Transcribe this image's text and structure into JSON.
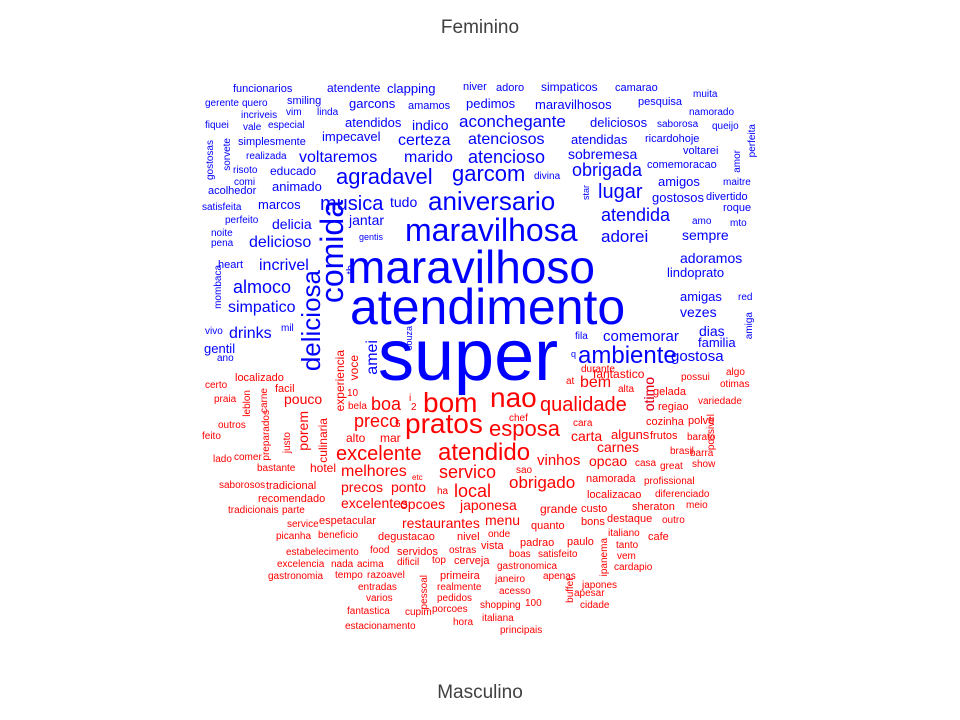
{
  "title_top": "Feminino",
  "title_bottom": "Masculino",
  "colors": {
    "feminino": "#0000ff",
    "masculino": "#ff0000"
  },
  "words": [
    {
      "t": "super",
      "g": "f"
    },
    {
      "t": "atendimento",
      "g": "f"
    },
    {
      "t": "maravilhoso",
      "g": "f"
    },
    {
      "t": "maravilhosa",
      "g": "f"
    },
    {
      "t": "comida",
      "g": "f"
    },
    {
      "t": "aniversario",
      "g": "f"
    },
    {
      "t": "deliciosa",
      "g": "f"
    },
    {
      "t": "ambiente",
      "g": "f"
    },
    {
      "t": "agradavel",
      "g": "f"
    },
    {
      "t": "garcom",
      "g": "f"
    },
    {
      "t": "musica",
      "g": "f"
    },
    {
      "t": "aconchegante",
      "g": "f"
    },
    {
      "t": "atencioso",
      "g": "f"
    },
    {
      "t": "atenciosos",
      "g": "f"
    },
    {
      "t": "obrigada",
      "g": "f"
    },
    {
      "t": "lugar",
      "g": "f"
    },
    {
      "t": "atendida",
      "g": "f"
    },
    {
      "t": "adorei",
      "g": "f"
    },
    {
      "t": "voltaremos",
      "g": "f"
    },
    {
      "t": "marido",
      "g": "f"
    },
    {
      "t": "certeza",
      "g": "f"
    },
    {
      "t": "delicioso",
      "g": "f"
    },
    {
      "t": "incrivel",
      "g": "f"
    },
    {
      "t": "almoco",
      "g": "f"
    },
    {
      "t": "simpatico",
      "g": "f"
    },
    {
      "t": "drinks",
      "g": "f"
    },
    {
      "t": "otimo",
      "g": "f"
    },
    {
      "t": "comemorar",
      "g": "f"
    },
    {
      "t": "gostosa",
      "g": "f"
    },
    {
      "t": "amigas",
      "g": "f"
    },
    {
      "t": "vezes",
      "g": "f"
    },
    {
      "t": "dias",
      "g": "f"
    },
    {
      "t": "familia",
      "g": "f"
    },
    {
      "t": "adoramos",
      "g": "f"
    },
    {
      "t": "lindoprato",
      "g": "f"
    },
    {
      "t": "sempre",
      "g": "f"
    },
    {
      "t": "gostosos",
      "g": "f"
    },
    {
      "t": "amigos",
      "g": "f"
    },
    {
      "t": "sobremesa",
      "g": "f"
    },
    {
      "t": "atendidas",
      "g": "f"
    },
    {
      "t": "deliciosos",
      "g": "f"
    },
    {
      "t": "maravilhosos",
      "g": "f"
    },
    {
      "t": "pedimos",
      "g": "f"
    },
    {
      "t": "garcons",
      "g": "f"
    },
    {
      "t": "indico",
      "g": "f"
    },
    {
      "t": "atendidos",
      "g": "f"
    },
    {
      "t": "impecavel",
      "g": "f"
    },
    {
      "t": "jantar",
      "g": "f"
    },
    {
      "t": "tudo",
      "g": "f"
    },
    {
      "t": "delicia",
      "g": "f"
    },
    {
      "t": "marcos",
      "g": "f"
    },
    {
      "t": "animado",
      "g": "f"
    },
    {
      "t": "educado",
      "g": "f"
    },
    {
      "t": "amei",
      "g": "f"
    },
    {
      "t": "gentil",
      "g": "f"
    },
    {
      "t": "clapping",
      "g": "f"
    },
    {
      "t": "atendente",
      "g": "f"
    },
    {
      "t": "funcionarios",
      "g": "f"
    },
    {
      "t": "smiling",
      "g": "f"
    },
    {
      "t": "amamos",
      "g": "f"
    },
    {
      "t": "simpaticos",
      "g": "f"
    },
    {
      "t": "camarao",
      "g": "f"
    },
    {
      "t": "niver",
      "g": "f"
    },
    {
      "t": "adoro",
      "g": "f"
    },
    {
      "t": "pesquisa",
      "g": "f"
    },
    {
      "t": "muita",
      "g": "f"
    },
    {
      "t": "namorado",
      "g": "f"
    },
    {
      "t": "saborosa",
      "g": "f"
    },
    {
      "t": "queijo",
      "g": "f"
    },
    {
      "t": "voltarei",
      "g": "f"
    },
    {
      "t": "ricardohoje",
      "g": "f"
    },
    {
      "t": "comemoracao",
      "g": "f"
    },
    {
      "t": "divertido",
      "g": "f"
    },
    {
      "t": "maitre",
      "g": "f"
    },
    {
      "t": "roque",
      "g": "f"
    },
    {
      "t": "amo",
      "g": "f"
    },
    {
      "t": "mto",
      "g": "f"
    },
    {
      "t": "red",
      "g": "f"
    },
    {
      "t": "amiga",
      "g": "f"
    },
    {
      "t": "perfeita",
      "g": "f"
    },
    {
      "t": "amor",
      "g": "f"
    },
    {
      "t": "simplesmente",
      "g": "f"
    },
    {
      "t": "realizada",
      "g": "f"
    },
    {
      "t": "risoto",
      "g": "f"
    },
    {
      "t": "comi",
      "g": "f"
    },
    {
      "t": "acolhedor",
      "g": "f"
    },
    {
      "t": "satisfeita",
      "g": "f"
    },
    {
      "t": "perfeito",
      "g": "f"
    },
    {
      "t": "noite",
      "g": "f"
    },
    {
      "t": "pena",
      "g": "f"
    },
    {
      "t": "heart",
      "g": "f"
    },
    {
      "t": "mombaca",
      "g": "f"
    },
    {
      "t": "vivo",
      "g": "f"
    },
    {
      "t": "ano",
      "g": "f"
    },
    {
      "t": "mil",
      "g": "f"
    },
    {
      "t": "gerente",
      "g": "f"
    },
    {
      "t": "quero",
      "g": "f"
    },
    {
      "t": "incriveis",
      "g": "f"
    },
    {
      "t": "vim",
      "g": "f"
    },
    {
      "t": "linda",
      "g": "f"
    },
    {
      "t": "fiquei",
      "g": "f"
    },
    {
      "t": "vale",
      "g": "f"
    },
    {
      "t": "especial",
      "g": "f"
    },
    {
      "t": "gostosas",
      "g": "f"
    },
    {
      "t": "sorvete",
      "g": "f"
    },
    {
      "t": "divina",
      "g": "f"
    },
    {
      "t": "star",
      "g": "f"
    },
    {
      "t": "gentis",
      "g": "f"
    },
    {
      "t": "tb",
      "g": "f"
    },
    {
      "t": "fila",
      "g": "f"
    },
    {
      "t": "q",
      "g": "f"
    },
    {
      "t": "souza",
      "g": "f"
    },
    {
      "t": "bom",
      "g": "m"
    },
    {
      "t": "pratos",
      "g": "m"
    },
    {
      "t": "nao",
      "g": "m"
    },
    {
      "t": "qualidade",
      "g": "m"
    },
    {
      "t": "esposa",
      "g": "m"
    },
    {
      "t": "boa",
      "g": "m"
    },
    {
      "t": "preco",
      "g": "m"
    },
    {
      "t": "excelente",
      "g": "m"
    },
    {
      "t": "atendido",
      "g": "m"
    },
    {
      "t": "servico",
      "g": "m"
    },
    {
      "t": "local",
      "g": "m"
    },
    {
      "t": "obrigado",
      "g": "m"
    },
    {
      "t": "vinhos",
      "g": "m"
    },
    {
      "t": "melhores",
      "g": "m"
    },
    {
      "t": "precos",
      "g": "m"
    },
    {
      "t": "ponto",
      "g": "m"
    },
    {
      "t": "excelentes",
      "g": "m"
    },
    {
      "t": "opcoes",
      "g": "m"
    },
    {
      "t": "japonesa",
      "g": "m"
    },
    {
      "t": "restaurantes",
      "g": "m"
    },
    {
      "t": "menu",
      "g": "m"
    },
    {
      "t": "bem",
      "g": "m"
    },
    {
      "t": "carta",
      "g": "m"
    },
    {
      "t": "carnes",
      "g": "m"
    },
    {
      "t": "opcao",
      "g": "m"
    },
    {
      "t": "alguns",
      "g": "m"
    },
    {
      "t": "pouco",
      "g": "m"
    },
    {
      "t": "porem",
      "g": "m"
    },
    {
      "t": "culinaria",
      "g": "m"
    },
    {
      "t": "hotel",
      "g": "m"
    },
    {
      "t": "alto",
      "g": "m"
    },
    {
      "t": "mar",
      "g": "m"
    },
    {
      "t": "experiencia",
      "g": "m"
    },
    {
      "t": "voce",
      "g": "m"
    },
    {
      "t": "otimo",
      "g": "m"
    },
    {
      "t": "fantastico",
      "g": "m"
    },
    {
      "t": "durante",
      "g": "m"
    },
    {
      "t": "possui",
      "g": "m"
    },
    {
      "t": "algo",
      "g": "m"
    },
    {
      "t": "otimas",
      "g": "m"
    },
    {
      "t": "variedade",
      "g": "m"
    },
    {
      "t": "gelada",
      "g": "m"
    },
    {
      "t": "regiao",
      "g": "m"
    },
    {
      "t": "cozinha",
      "g": "m"
    },
    {
      "t": "polvo",
      "g": "m"
    },
    {
      "t": "frutos",
      "g": "m"
    },
    {
      "t": "barato",
      "g": "m"
    },
    {
      "t": "possivel",
      "g": "m"
    },
    {
      "t": "barra",
      "g": "m"
    },
    {
      "t": "show",
      "g": "m"
    },
    {
      "t": "great",
      "g": "m"
    },
    {
      "t": "brasil",
      "g": "m"
    },
    {
      "t": "casa",
      "g": "m"
    },
    {
      "t": "namorada",
      "g": "m"
    },
    {
      "t": "profissional",
      "g": "m"
    },
    {
      "t": "diferenciado",
      "g": "m"
    },
    {
      "t": "localizacao",
      "g": "m"
    },
    {
      "t": "meio",
      "g": "m"
    },
    {
      "t": "sheraton",
      "g": "m"
    },
    {
      "t": "outro",
      "g": "m"
    },
    {
      "t": "destaque",
      "g": "m"
    },
    {
      "t": "grande",
      "g": "m"
    },
    {
      "t": "custo",
      "g": "m"
    },
    {
      "t": "bons",
      "g": "m"
    },
    {
      "t": "italiano",
      "g": "m"
    },
    {
      "t": "cafe",
      "g": "m"
    },
    {
      "t": "tanto",
      "g": "m"
    },
    {
      "t": "vem",
      "g": "m"
    },
    {
      "t": "cardapio",
      "g": "m"
    },
    {
      "t": "ipanema",
      "g": "m"
    },
    {
      "t": "japones",
      "g": "m"
    },
    {
      "t": "apesar",
      "g": "m"
    },
    {
      "t": "cidade",
      "g": "m"
    },
    {
      "t": "buffet",
      "g": "m"
    },
    {
      "t": "localizado",
      "g": "m"
    },
    {
      "t": "facil",
      "g": "m"
    },
    {
      "t": "certo",
      "g": "m"
    },
    {
      "t": "praia",
      "g": "m"
    },
    {
      "t": "leblon",
      "g": "m"
    },
    {
      "t": "carne",
      "g": "m"
    },
    {
      "t": "preparados",
      "g": "m"
    },
    {
      "t": "outros",
      "g": "m"
    },
    {
      "t": "feito",
      "g": "m"
    },
    {
      "t": "justo",
      "g": "m"
    },
    {
      "t": "lado",
      "g": "m"
    },
    {
      "t": "comer",
      "g": "m"
    },
    {
      "t": "bastante",
      "g": "m"
    },
    {
      "t": "saborosos",
      "g": "m"
    },
    {
      "t": "tradicional",
      "g": "m"
    },
    {
      "t": "recomendado",
      "g": "m"
    },
    {
      "t": "tradicionais",
      "g": "m"
    },
    {
      "t": "parte",
      "g": "m"
    },
    {
      "t": "service",
      "g": "m"
    },
    {
      "t": "espetacular",
      "g": "m"
    },
    {
      "t": "picanha",
      "g": "m"
    },
    {
      "t": "beneficio",
      "g": "m"
    },
    {
      "t": "degustacao",
      "g": "m"
    },
    {
      "t": "nivel",
      "g": "m"
    },
    {
      "t": "estabelecimento",
      "g": "m"
    },
    {
      "t": "food",
      "g": "m"
    },
    {
      "t": "servidos",
      "g": "m"
    },
    {
      "t": "ostras",
      "g": "m"
    },
    {
      "t": "vista",
      "g": "m"
    },
    {
      "t": "padrao",
      "g": "m"
    },
    {
      "t": "paulo",
      "g": "m"
    },
    {
      "t": "excelencia",
      "g": "m"
    },
    {
      "t": "nada",
      "g": "m"
    },
    {
      "t": "acima",
      "g": "m"
    },
    {
      "t": "dificil",
      "g": "m"
    },
    {
      "t": "top",
      "g": "m"
    },
    {
      "t": "cerveja",
      "g": "m"
    },
    {
      "t": "boas",
      "g": "m"
    },
    {
      "t": "satisfeito",
      "g": "m"
    },
    {
      "t": "gastronomia",
      "g": "m"
    },
    {
      "t": "tempo",
      "g": "m"
    },
    {
      "t": "razoavel",
      "g": "m"
    },
    {
      "t": "primeira",
      "g": "m"
    },
    {
      "t": "gastronomica",
      "g": "m"
    },
    {
      "t": "apenas",
      "g": "m"
    },
    {
      "t": "entradas",
      "g": "m"
    },
    {
      "t": "janeiro",
      "g": "m"
    },
    {
      "t": "etc",
      "g": "m"
    },
    {
      "t": "realmente",
      "g": "m"
    },
    {
      "t": "acesso",
      "g": "m"
    },
    {
      "t": "varios",
      "g": "m"
    },
    {
      "t": "pessoal",
      "g": "m"
    },
    {
      "t": "pedidos",
      "g": "m"
    },
    {
      "t": "porcoes",
      "g": "m"
    },
    {
      "t": "shopping",
      "g": "m"
    },
    {
      "t": "100",
      "g": "m"
    },
    {
      "t": "fantastica",
      "g": "m"
    },
    {
      "t": "cupim",
      "g": "m"
    },
    {
      "t": "estacionamento",
      "g": "m"
    },
    {
      "t": "hora",
      "g": "m"
    },
    {
      "t": "italiana",
      "g": "m"
    },
    {
      "t": "principais",
      "g": "m"
    },
    {
      "t": "chef",
      "g": "m"
    },
    {
      "t": "cara",
      "g": "m"
    },
    {
      "t": "sao",
      "g": "m"
    },
    {
      "t": "ha",
      "g": "m"
    },
    {
      "t": "quanto",
      "g": "m"
    },
    {
      "t": "onde",
      "g": "m"
    },
    {
      "t": "at",
      "g": "m"
    },
    {
      "t": "alta",
      "g": "m"
    },
    {
      "t": "10",
      "g": "m"
    },
    {
      "t": "5",
      "g": "m"
    },
    {
      "t": "bela",
      "g": "m"
    },
    {
      "t": "i",
      "g": "m"
    },
    {
      "t": "2",
      "g": "m"
    }
  ]
}
